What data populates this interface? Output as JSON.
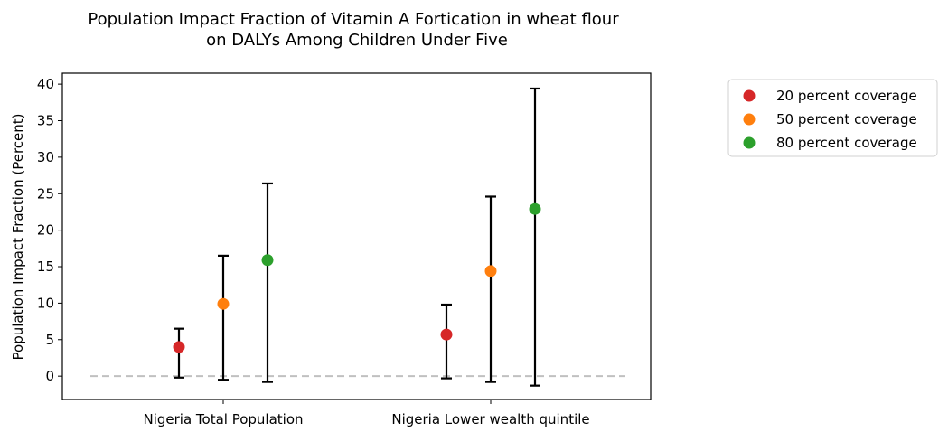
{
  "chart_data": {
    "type": "scatter",
    "title_lines": [
      "Population Impact Fraction of Vitamin A Fortication in wheat flour",
      "on DALYs Among Children Under Five"
    ],
    "xlabel": "",
    "ylabel": "Population Impact Fraction (Percent)",
    "categories": [
      "Nigeria Total Population",
      "Nigeria Lower wealth quintile"
    ],
    "ylim": [
      -3.2,
      41.5
    ],
    "yticks": [
      0,
      5,
      10,
      15,
      20,
      25,
      30,
      35,
      40
    ],
    "grid": false,
    "legend_position": "outside-right",
    "reference_line": {
      "y": 0,
      "style": "dashed",
      "color": "#c0c0c0"
    },
    "series": [
      {
        "name": "20 percent coverage",
        "color": "#d62728",
        "values": [
          4.0,
          5.7
        ],
        "lower": [
          -0.2,
          -0.3
        ],
        "upper": [
          6.5,
          9.8
        ]
      },
      {
        "name": "50 percent coverage",
        "color": "#ff7f0e",
        "values": [
          9.9,
          14.4
        ],
        "lower": [
          -0.5,
          -0.8
        ],
        "upper": [
          16.5,
          24.6
        ]
      },
      {
        "name": "80 percent coverage",
        "color": "#2ca02c",
        "values": [
          15.9,
          22.9
        ],
        "lower": [
          -0.8,
          -1.3
        ],
        "upper": [
          26.4,
          39.4
        ]
      }
    ]
  }
}
